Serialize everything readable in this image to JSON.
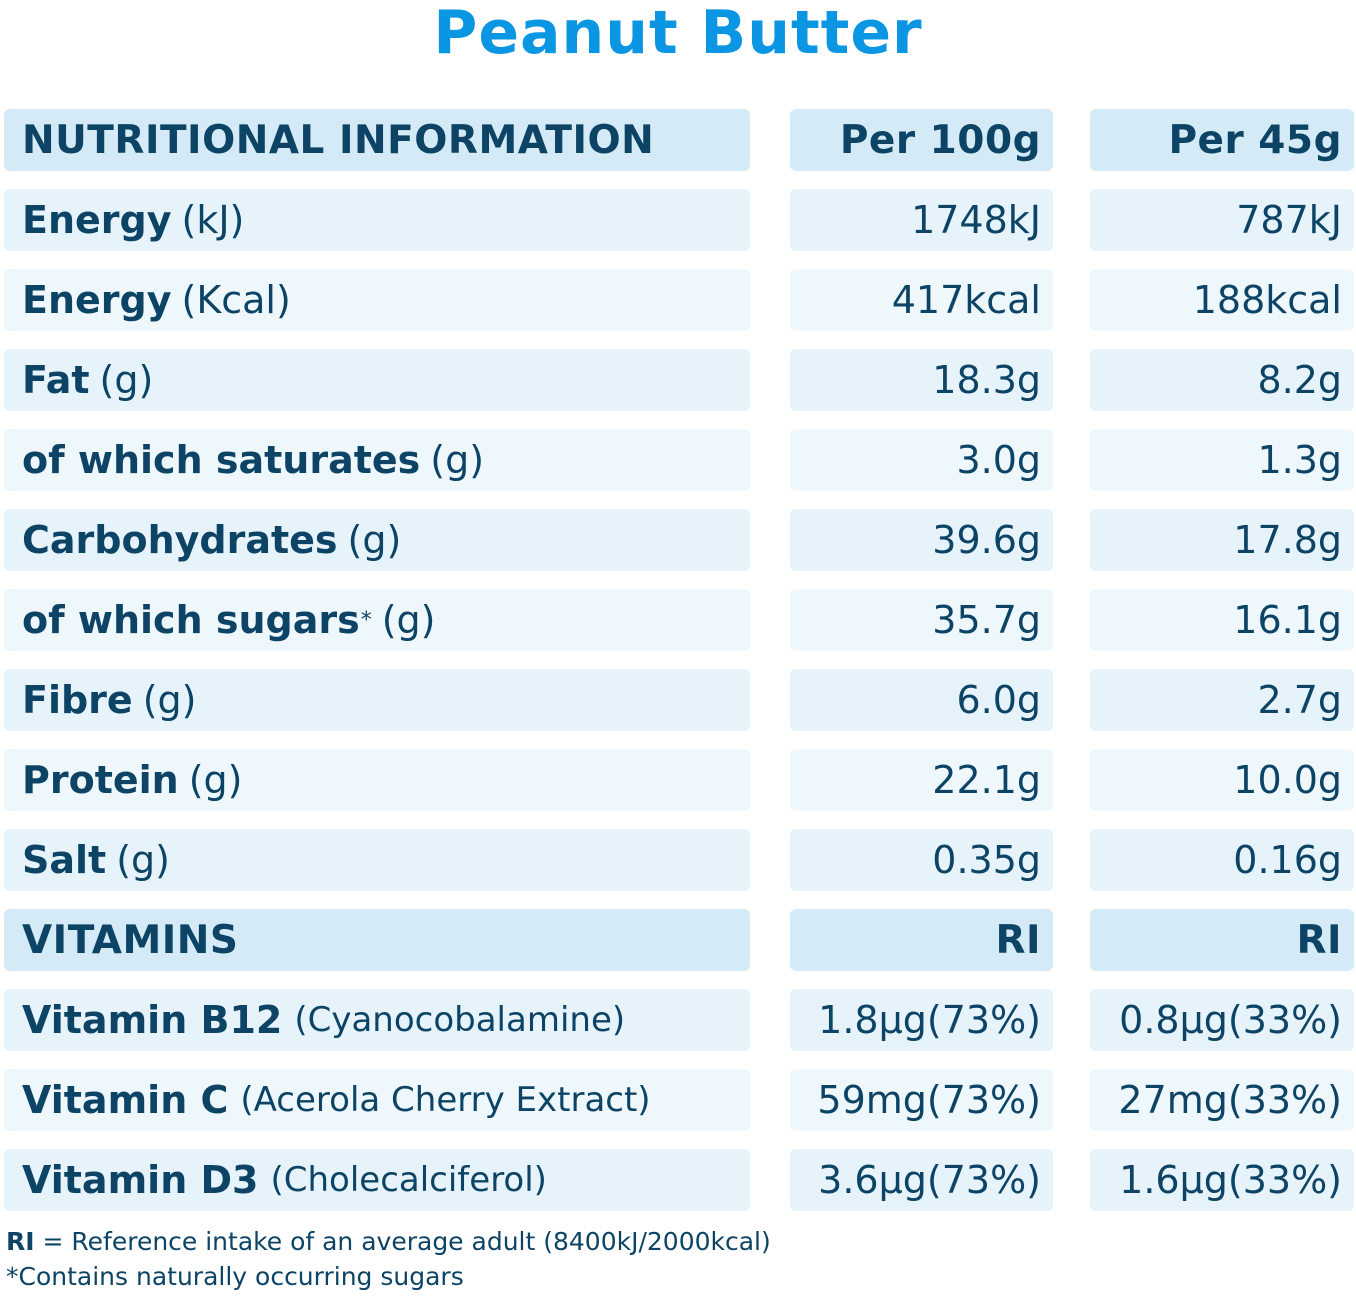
{
  "title": "Peanut Butter",
  "table": {
    "header": {
      "label": "NUTRITIONAL INFORMATION",
      "col1": "Per 100g",
      "col2": "Per 45g"
    },
    "rows": [
      {
        "label": "Energy",
        "unit": "(kJ)",
        "per100": "1748kJ",
        "per45": "787kJ"
      },
      {
        "label": "Energy",
        "unit": "(Kcal)",
        "per100": "417kcal",
        "per45": "188kcal"
      },
      {
        "label": "Fat",
        "unit": "(g)",
        "per100": "18.3g",
        "per45": "8.2g"
      },
      {
        "label": "of which saturates",
        "unit": "(g)",
        "per100": "3.0g",
        "per45": "1.3g"
      },
      {
        "label": "Carbohydrates",
        "unit": "(g)",
        "per100": "39.6g",
        "per45": "17.8g"
      },
      {
        "label": "of which sugars",
        "marker": "*",
        "unit": "(g)",
        "per100": "35.7g",
        "per45": "16.1g"
      },
      {
        "label": "Fibre",
        "unit": "(g)",
        "per100": "6.0g",
        "per45": "2.7g"
      },
      {
        "label": "Protein",
        "unit": "(g)",
        "per100": "22.1g",
        "per45": "10.0g"
      },
      {
        "label": "Salt",
        "unit": "(g)",
        "per100": "0.35g",
        "per45": "0.16g"
      }
    ],
    "vitamins_header": {
      "label": "VITAMINS",
      "col1": "RI",
      "col2": "RI"
    },
    "vitamins": [
      {
        "label": "Vitamin B12",
        "source": "(Cyanocobalamine)",
        "per100": "1.8μg(73%)",
        "per45": "0.8μg(33%)"
      },
      {
        "label": "Vitamin C",
        "source": "(Acerola Cherry Extract)",
        "per100": "59mg(73%)",
        "per45": "27mg(33%)"
      },
      {
        "label": "Vitamin D3",
        "source": "(Cholecalciferol)",
        "per100": "3.6μg(73%)",
        "per45": "1.6μg(33%)"
      }
    ]
  },
  "footnotes": {
    "ri_abbr": "RI",
    "ri_text": " = Reference intake of an average adult (8400kJ/2000kcal)",
    "sugars_note": "*Contains naturally occurring sugars"
  },
  "colors": {
    "title": "#0a96e3",
    "text": "#0d4466",
    "header_bg": "#d4ebf7",
    "row_bg": "#e6f3fa"
  }
}
